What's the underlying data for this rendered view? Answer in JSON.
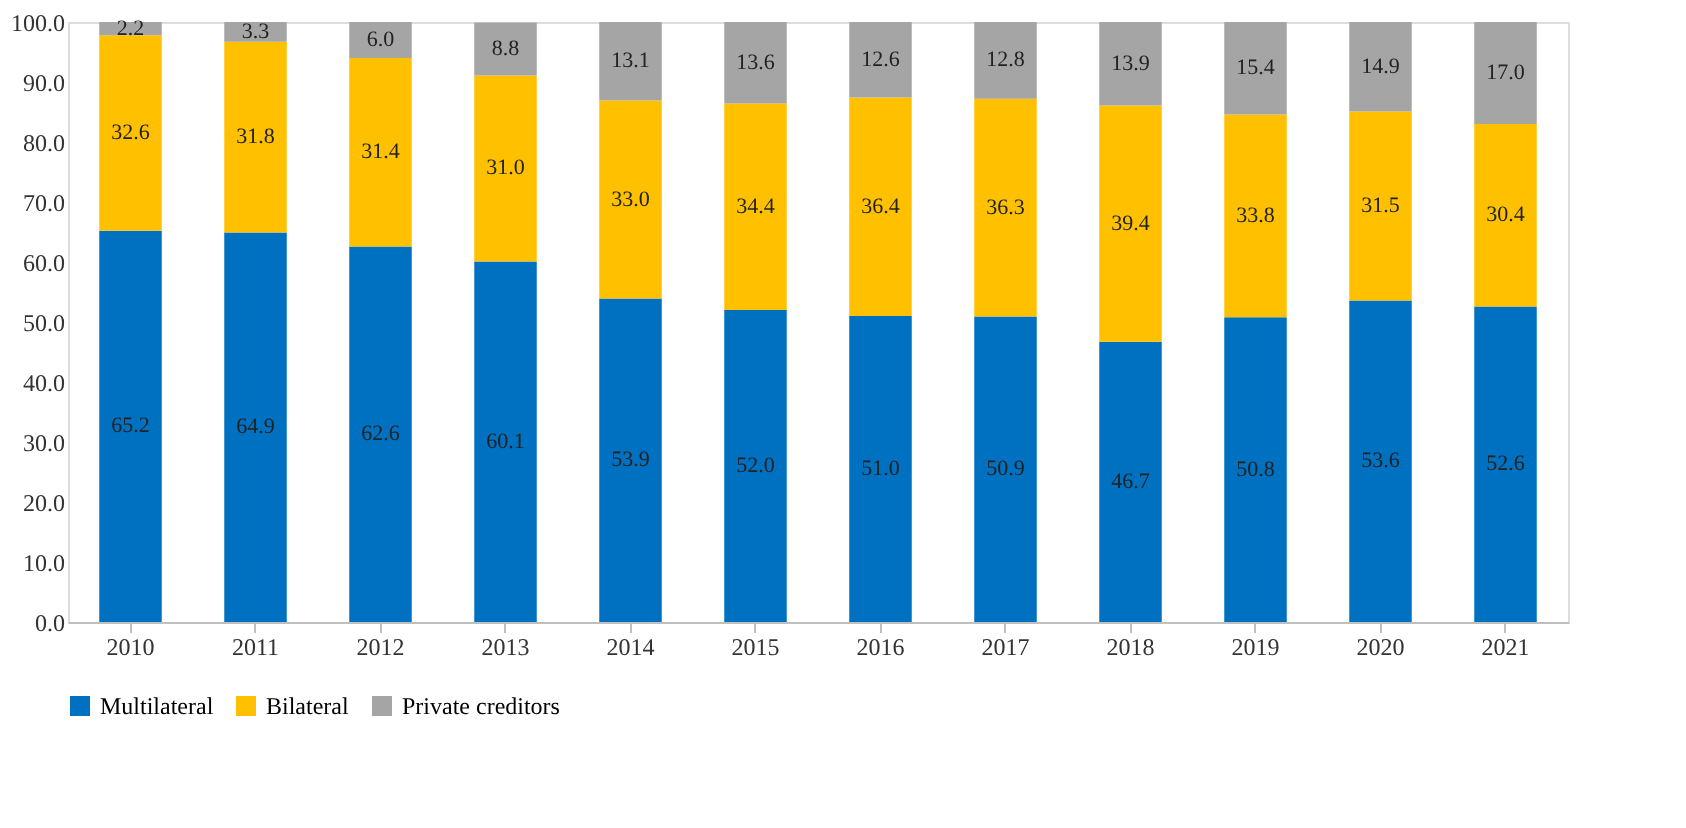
{
  "chart_data": {
    "type": "bar",
    "stacked": true,
    "categories": [
      "2010",
      "2011",
      "2012",
      "2013",
      "2014",
      "2015",
      "2016",
      "2017",
      "2018",
      "2019",
      "2020",
      "2021"
    ],
    "series": [
      {
        "name": "Multilateral",
        "color": "#0070c0",
        "values": [
          65.2,
          64.9,
          62.6,
          60.1,
          53.9,
          52.0,
          51.0,
          50.9,
          46.7,
          50.8,
          53.6,
          52.6
        ],
        "value_labels": [
          "65.2",
          "64.9",
          "62.6",
          "60.1",
          "53.9",
          "52.0",
          "51.0",
          "50.9",
          "46.7",
          "50.8",
          "53.6",
          "52.6"
        ]
      },
      {
        "name": "Bilateral",
        "color": "#ffc000",
        "values": [
          32.6,
          31.8,
          31.4,
          31.0,
          33.0,
          34.4,
          36.4,
          36.3,
          39.4,
          33.8,
          31.5,
          30.4
        ],
        "value_labels": [
          "32.6",
          "31.8",
          "31.4",
          "31.0",
          "33.0",
          "34.4",
          "36.4",
          "36.3",
          "39.4",
          "33.8",
          "31.5",
          "30.4"
        ]
      },
      {
        "name": "Private creditors",
        "color": "#a5a5a5",
        "values": [
          2.2,
          3.3,
          6.0,
          8.8,
          13.1,
          13.6,
          12.6,
          12.8,
          13.9,
          15.4,
          14.9,
          17.0
        ],
        "value_labels": [
          "2.2",
          "3.3",
          "6.0",
          "8.8",
          "13.1",
          "13.6",
          "12.6",
          "12.8",
          "13.9",
          "15.4",
          "14.9",
          "17.0"
        ]
      }
    ],
    "ylim": [
      0,
      100
    ],
    "yticks": [
      {
        "value": 0,
        "label": "0.0"
      },
      {
        "value": 10,
        "label": "10.0"
      },
      {
        "value": 20,
        "label": "20.0"
      },
      {
        "value": 30,
        "label": "30.0"
      },
      {
        "value": 40,
        "label": "40.0"
      },
      {
        "value": 50,
        "label": "50.0"
      },
      {
        "value": 60,
        "label": "60.0"
      },
      {
        "value": 70,
        "label": "70.0"
      },
      {
        "value": 80,
        "label": "80.0"
      },
      {
        "value": 90,
        "label": "90.0"
      },
      {
        "value": 100,
        "label": "100.0"
      }
    ],
    "grid": false,
    "legend": "bottom"
  }
}
